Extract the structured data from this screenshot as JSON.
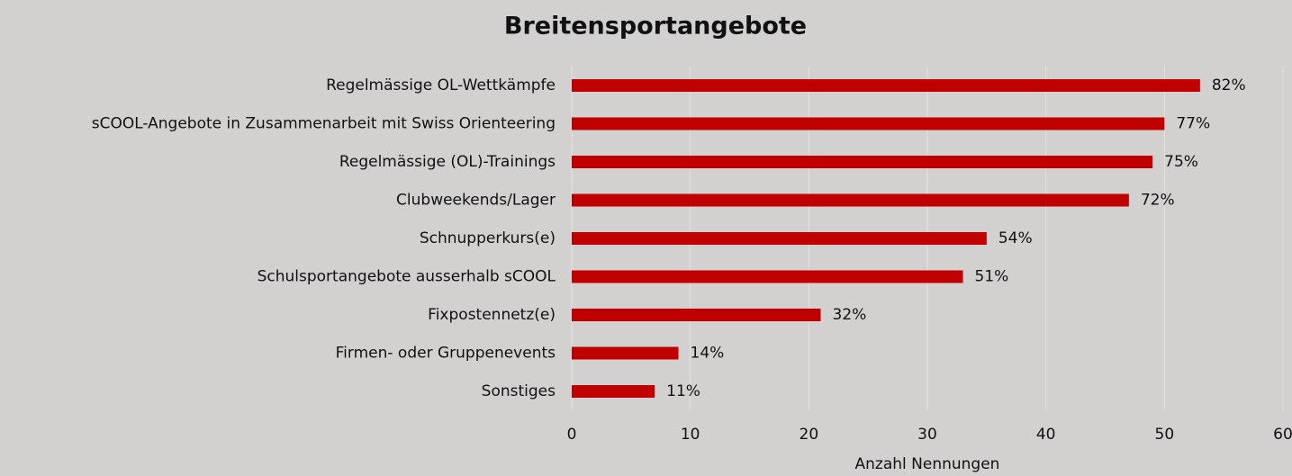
{
  "chart_data": {
    "type": "bar",
    "orientation": "horizontal",
    "title": "Breitensportangebote",
    "x_label": "Anzahl Nennungen",
    "categories": [
      "Regelmässige OL-Wettkämpfe",
      "sCOOL-Angebote in Zusammenarbeit mit Swiss Orienteering",
      "Regelmässige (OL)-Trainings",
      "Clubweekends/Lager",
      "Schnupperkurs(e)",
      "Schulsportangebote ausserhalb sCOOL",
      "Fixpostennetz(e)",
      "Firmen- oder Gruppenevents",
      "Sonstiges"
    ],
    "values": [
      53,
      50,
      49,
      47,
      35,
      33,
      21,
      9,
      7
    ],
    "value_labels": [
      "82%",
      "77%",
      "75%",
      "72%",
      "54%",
      "51%",
      "32%",
      "14%",
      "11%"
    ],
    "color": "#c00000",
    "xlim": [
      0,
      60
    ],
    "xticks": [
      0,
      10,
      20,
      30,
      40,
      50,
      60
    ],
    "grid": true
  }
}
